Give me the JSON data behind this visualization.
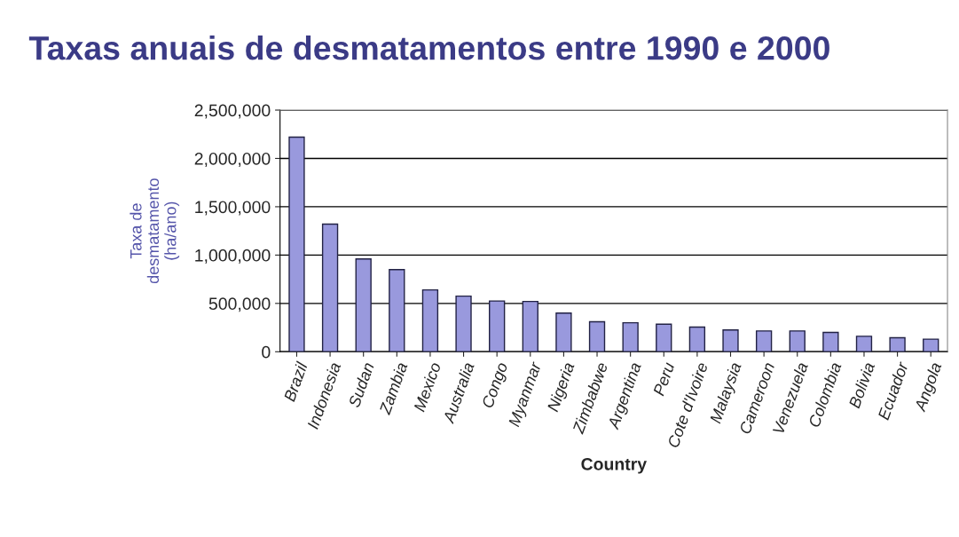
{
  "chart_data": {
    "type": "bar",
    "title": "Taxas anuais de desmatamentos entre 1990 e 2000",
    "xlabel": "Country",
    "ylabel": "Taxa de\ndesmatamento\n(ha/ano)",
    "categories": [
      "Brazil",
      "Indonesia",
      "Sudan",
      "Zambia",
      "Mexico",
      "Australia",
      "Congo",
      "Myanmar",
      "Nigeria",
      "Zimbabwe",
      "Argentina",
      "Peru",
      "Cote d'Ivoire",
      "Malaysia",
      "Cameroon",
      "Venezuela",
      "Colombia",
      "Bolivia",
      "Ecuador",
      "Angola"
    ],
    "values": [
      2220000,
      1320000,
      960000,
      850000,
      640000,
      575000,
      525000,
      520000,
      400000,
      310000,
      300000,
      285000,
      255000,
      225000,
      215000,
      215000,
      200000,
      160000,
      145000,
      130000
    ],
    "color": "#9999dd",
    "ylim": [
      0,
      2500000
    ],
    "yticks": [
      {
        "value": 0,
        "label": "0"
      },
      {
        "value": 500000,
        "label": "500,000"
      },
      {
        "value": 1000000,
        "label": "1,000,000"
      },
      {
        "value": 1500000,
        "label": "1,500,000"
      },
      {
        "value": 2000000,
        "label": "2,000,000"
      },
      {
        "value": 2500000,
        "label": "2,500,000"
      }
    ],
    "grid": "y"
  }
}
